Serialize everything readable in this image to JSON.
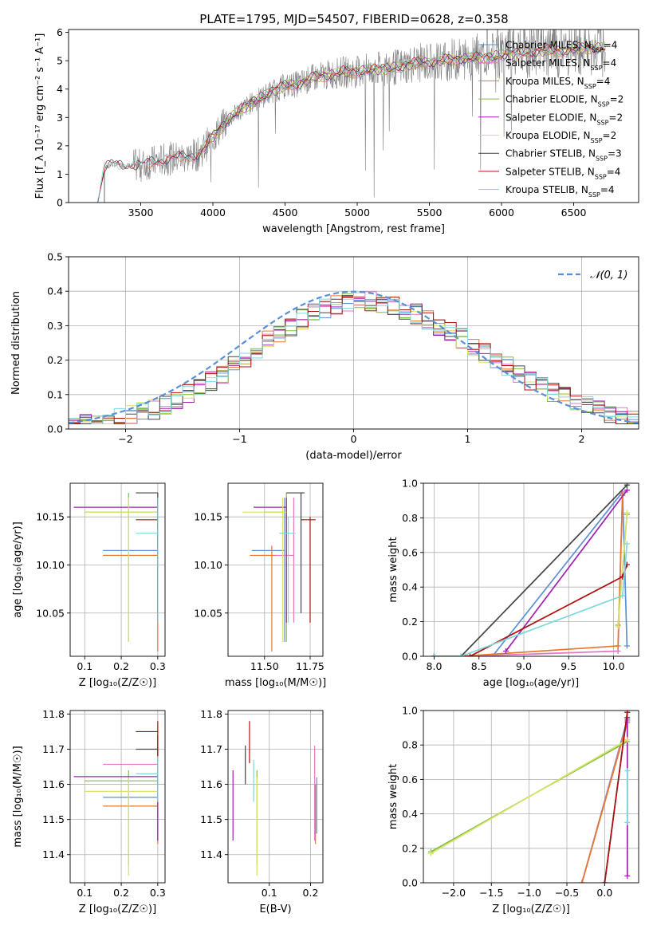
{
  "figure": {
    "title": "PLATE=1795, MJD=54507, FIBERID=0628, z=0.358"
  },
  "colors": {
    "chabrier_miles": "#5b8fd6",
    "salpeter_miles": "#e377c2",
    "kroupa_miles": "#e8772e",
    "chabrier_elodie": "#7fbf3f",
    "salpeter_elodie": "#a020b0",
    "kroupa_elodie": "#d9e36a",
    "chabrier_stelib": "#444444",
    "salpeter_stelib": "#b01010",
    "kroupa_stelib": "#7fd8dc",
    "observed": "#808080",
    "normal": "#5b8fd6"
  },
  "chart_data": [
    {
      "id": "spectrum",
      "type": "line",
      "xlabel": "wavelength [Angstrom, rest frame]",
      "ylabel": "Flux [f_λ 10⁻¹⁷ erg cm⁻² s⁻¹ A⁻¹]",
      "xlim": [
        3000,
        6950
      ],
      "ylim": [
        0,
        6.1
      ],
      "xticks": [
        3500,
        4000,
        4500,
        5000,
        5500,
        6000,
        6500
      ],
      "yticks": [
        0,
        1,
        2,
        3,
        4,
        5,
        6
      ],
      "grid": false,
      "legend_position": "top-right",
      "legend": [
        {
          "label": "Chabrier MILES, N",
          "sub": "SSP",
          "tail": "=4",
          "color_key": "chabrier_miles"
        },
        {
          "label": "Salpeter MILES, N",
          "sub": "SSP",
          "tail": "=4",
          "color_key": "salpeter_miles"
        },
        {
          "label": "Kroupa MILES, N",
          "sub": "SSP",
          "tail": "=4",
          "color_key": "kroupa_miles"
        },
        {
          "label": "Chabrier ELODIE, N",
          "sub": "SSP",
          "tail": "=2",
          "color_key": "chabrier_elodie"
        },
        {
          "label": "Salpeter ELODIE, N",
          "sub": "SSP",
          "tail": "=2",
          "color_key": "salpeter_elodie"
        },
        {
          "label": "Kroupa ELODIE, N",
          "sub": "SSP",
          "tail": "=2",
          "color_key": "kroupa_elodie"
        },
        {
          "label": "Chabrier STELIB, N",
          "sub": "SSP",
          "tail": "=3",
          "color_key": "chabrier_stelib"
        },
        {
          "label": "Salpeter STELIB, N",
          "sub": "SSP",
          "tail": "=4",
          "color_key": "salpeter_stelib"
        },
        {
          "label": "Kroupa STELIB, N",
          "sub": "SSP",
          "tail": "=4",
          "color_key": "kroupa_stelib"
        }
      ],
      "model_continuum": {
        "x": [
          3200,
          3250,
          3300,
          3400,
          3500,
          3600,
          3700,
          3800,
          3900,
          4000,
          4100,
          4200,
          4300,
          4400,
          4500,
          4600,
          4700,
          4800,
          4900,
          5000,
          5100,
          5200,
          5300,
          5400,
          5500,
          5600,
          5700,
          5800,
          5900,
          6000,
          6100,
          6200,
          6300,
          6400,
          6500,
          6600,
          6700
        ],
        "y": [
          0.0,
          1.2,
          1.35,
          1.3,
          1.3,
          1.45,
          1.55,
          1.6,
          1.7,
          2.3,
          2.9,
          3.3,
          3.6,
          3.9,
          4.1,
          4.2,
          4.4,
          4.5,
          4.6,
          4.6,
          4.7,
          4.7,
          4.8,
          4.9,
          4.95,
          5.0,
          5.05,
          5.1,
          5.1,
          5.2,
          5.25,
          5.3,
          5.35,
          5.35,
          5.4,
          5.45,
          5.45
        ]
      }
    },
    {
      "id": "residuals",
      "type": "line",
      "xlabel": "(data-model)/error",
      "ylabel": "Normed distribution",
      "xlim": [
        -2.5,
        2.5
      ],
      "ylim": [
        0,
        0.5
      ],
      "xticks": [
        -2,
        -1,
        0,
        1,
        2
      ],
      "yticks": [
        0.0,
        0.1,
        0.2,
        0.3,
        0.4,
        0.5
      ],
      "grid": true,
      "legend_position": "top-right",
      "legend": [
        {
          "label": "𝒩(0, 1)",
          "color_key": "normal",
          "style": "dashed"
        }
      ],
      "gaussian": {
        "mu": 0,
        "sigma": 1
      }
    },
    {
      "id": "age_vs_Z",
      "type": "scatter",
      "xlabel": "Z [log₁₀(Z/Z☉)]",
      "ylabel": "age  [log₁₀(age/yr)]",
      "xlim": [
        0.06,
        0.32
      ],
      "ylim": [
        10.005,
        10.185
      ],
      "xticks": [
        0.1,
        0.2,
        0.3
      ],
      "yticks": [
        10.05,
        10.1,
        10.15
      ],
      "grid": true,
      "points": [
        {
          "key": "chabrier_miles",
          "x": 0.3,
          "y": 10.115,
          "xlo": 0.15,
          "xhi": 0.3,
          "ylo": 10.06,
          "yhi": 10.17
        },
        {
          "key": "salpeter_miles",
          "x": 0.3,
          "y": 10.11,
          "xlo": 0.15,
          "xhi": 0.3,
          "ylo": 10.04,
          "yhi": 10.17
        },
        {
          "key": "kroupa_miles",
          "x": 0.3,
          "y": 10.11,
          "xlo": 0.15,
          "xhi": 0.3,
          "ylo": 10.01,
          "yhi": 10.12
        },
        {
          "key": "chabrier_elodie",
          "x": 0.22,
          "y": 10.155,
          "xlo": 0.1,
          "xhi": 0.3,
          "ylo": 10.02,
          "yhi": 10.175
        },
        {
          "key": "salpeter_elodie",
          "x": 0.3,
          "y": 10.16,
          "xlo": 0.07,
          "xhi": 0.3,
          "ylo": 10.04,
          "yhi": 10.17
        },
        {
          "key": "kroupa_elodie",
          "x": 0.22,
          "y": 10.155,
          "xlo": 0.1,
          "xhi": 0.3,
          "ylo": 10.02,
          "yhi": 10.17
        },
        {
          "key": "chabrier_stelib",
          "x": 0.3,
          "y": 10.175,
          "xlo": 0.24,
          "xhi": 0.3,
          "ylo": 10.04,
          "yhi": 10.175
        },
        {
          "key": "salpeter_stelib",
          "x": 0.3,
          "y": 10.147,
          "xlo": 0.24,
          "xhi": 0.3,
          "ylo": 10.04,
          "yhi": 10.17
        },
        {
          "key": "kroupa_stelib",
          "x": 0.3,
          "y": 10.133,
          "xlo": 0.24,
          "xhi": 0.3,
          "ylo": 10.04,
          "yhi": 10.17
        }
      ]
    },
    {
      "id": "age_vs_mass",
      "type": "scatter",
      "xlabel": "mass [log₁₀(M/M☉)]",
      "ylabel": "",
      "xlim": [
        11.3,
        11.82
      ],
      "ylim": [
        10.005,
        10.185
      ],
      "xticks": [
        11.5,
        11.75
      ],
      "xticklabels": [
        "11.50",
        "11.75"
      ],
      "yticks": [
        10.05,
        10.1,
        10.15
      ],
      "grid": true,
      "points": [
        {
          "key": "chabrier_miles",
          "x": 11.61,
          "y": 10.115,
          "xlo": 11.43,
          "xhi": 11.61,
          "ylo": 10.02,
          "yhi": 10.17
        },
        {
          "key": "salpeter_miles",
          "x": 11.66,
          "y": 10.11,
          "xlo": 11.48,
          "xhi": 11.66,
          "ylo": 10.04,
          "yhi": 10.17
        },
        {
          "key": "kroupa_miles",
          "x": 11.54,
          "y": 10.11,
          "xlo": 11.42,
          "xhi": 11.56,
          "ylo": 10.01,
          "yhi": 10.12
        },
        {
          "key": "chabrier_elodie",
          "x": 11.62,
          "y": 10.155,
          "xlo": 11.5,
          "xhi": 11.62,
          "ylo": 10.02,
          "yhi": 10.175
        },
        {
          "key": "salpeter_elodie",
          "x": 11.62,
          "y": 10.16,
          "xlo": 11.44,
          "xhi": 11.62,
          "ylo": 10.04,
          "yhi": 10.17
        },
        {
          "key": "kroupa_elodie",
          "x": 11.6,
          "y": 10.155,
          "xlo": 11.38,
          "xhi": 11.62,
          "ylo": 10.02,
          "yhi": 10.17
        },
        {
          "key": "chabrier_stelib",
          "x": 11.7,
          "y": 10.175,
          "xlo": 11.62,
          "xhi": 11.72,
          "ylo": 10.05,
          "yhi": 10.175
        },
        {
          "key": "salpeter_stelib",
          "x": 11.75,
          "y": 10.147,
          "xlo": 11.7,
          "xhi": 11.78,
          "ylo": 10.04,
          "yhi": 10.15
        },
        {
          "key": "kroupa_stelib",
          "x": 11.63,
          "y": 10.133,
          "xlo": 11.58,
          "xhi": 11.67,
          "ylo": 10.04,
          "yhi": 10.15
        }
      ]
    },
    {
      "id": "massweight_vs_age",
      "type": "line",
      "xlabel": "age  [log₁₀(age/yr)]",
      "ylabel": "mass weight",
      "xlim": [
        7.88,
        10.28
      ],
      "ylim": [
        0,
        1
      ],
      "xticks": [
        8.0,
        8.5,
        9.0,
        9.5,
        10.0
      ],
      "xticklabels": [
        "8.0",
        "8.5",
        "9.0",
        "9.5",
        "10.0"
      ],
      "yticks": [
        0.0,
        0.2,
        0.4,
        0.6,
        0.8,
        1.0
      ],
      "grid": true,
      "series": [
        {
          "key": "chabrier_miles",
          "x": [
            8.0,
            8.65,
            10.1,
            10.15
          ],
          "y": [
            0.0,
            0.0,
            0.95,
            0.06
          ]
        },
        {
          "key": "salpeter_miles",
          "x": [
            8.0,
            8.35,
            10.05,
            10.1
          ],
          "y": [
            0.0,
            0.0,
            0.03,
            0.94
          ]
        },
        {
          "key": "kroupa_miles",
          "x": [
            8.0,
            8.3,
            10.05,
            10.1
          ],
          "y": [
            0.0,
            0.0,
            0.06,
            0.93
          ]
        },
        {
          "key": "chabrier_elodie",
          "x": [
            10.05,
            10.15
          ],
          "y": [
            0.18,
            0.82
          ]
        },
        {
          "key": "salpeter_elodie",
          "x": [
            8.8,
            10.15
          ],
          "y": [
            0.03,
            0.96
          ]
        },
        {
          "key": "kroupa_elodie",
          "x": [
            10.05,
            10.15
          ],
          "y": [
            0.17,
            0.83
          ]
        },
        {
          "key": "chabrier_stelib",
          "x": [
            8.0,
            8.3,
            10.15
          ],
          "y": [
            0.0,
            0.0,
            0.99
          ]
        },
        {
          "key": "salpeter_stelib",
          "x": [
            8.0,
            8.4,
            10.1,
            10.15
          ],
          "y": [
            0.0,
            0.0,
            0.46,
            0.53
          ]
        },
        {
          "key": "kroupa_stelib",
          "x": [
            8.0,
            8.3,
            10.1,
            10.15
          ],
          "y": [
            0.0,
            0.0,
            0.35,
            0.65
          ]
        }
      ]
    },
    {
      "id": "mass_vs_Z",
      "type": "scatter",
      "xlabel": "Z [log₁₀(Z/Z☉)]",
      "ylabel": "mass [log₁₀(M/M☉)]",
      "xlim": [
        0.06,
        0.32
      ],
      "ylim": [
        11.32,
        11.81
      ],
      "xticks": [
        0.1,
        0.2,
        0.3
      ],
      "yticks": [
        11.4,
        11.5,
        11.6,
        11.7,
        11.8
      ],
      "grid": true,
      "points": [
        {
          "key": "chabrier_miles",
          "x": 0.3,
          "y": 11.563,
          "xlo": 0.15,
          "xhi": 0.3,
          "ylo": 11.46,
          "yhi": 11.63
        },
        {
          "key": "salpeter_miles",
          "x": 0.3,
          "y": 11.657,
          "xlo": 0.15,
          "xhi": 0.3,
          "ylo": 11.44,
          "yhi": 11.71
        },
        {
          "key": "kroupa_miles",
          "x": 0.3,
          "y": 11.538,
          "xlo": 0.15,
          "xhi": 0.3,
          "ylo": 11.43,
          "yhi": 11.6
        },
        {
          "key": "chabrier_elodie",
          "x": 0.22,
          "y": 11.61,
          "xlo": 0.1,
          "xhi": 0.3,
          "ylo": 11.37,
          "yhi": 11.64
        },
        {
          "key": "salpeter_elodie",
          "x": 0.3,
          "y": 11.622,
          "xlo": 0.07,
          "xhi": 0.3,
          "ylo": 11.44,
          "yhi": 11.64
        },
        {
          "key": "kroupa_elodie",
          "x": 0.22,
          "y": 11.58,
          "xlo": 0.1,
          "xhi": 0.3,
          "ylo": 11.34,
          "yhi": 11.62
        },
        {
          "key": "chabrier_stelib",
          "x": 0.3,
          "y": 11.7,
          "xlo": 0.24,
          "xhi": 0.3,
          "ylo": 11.6,
          "yhi": 11.74
        },
        {
          "key": "salpeter_stelib",
          "x": 0.3,
          "y": 11.75,
          "xlo": 0.24,
          "xhi": 0.3,
          "ylo": 11.68,
          "yhi": 11.78
        },
        {
          "key": "kroupa_stelib",
          "x": 0.3,
          "y": 11.63,
          "xlo": 0.24,
          "xhi": 0.3,
          "ylo": 11.55,
          "yhi": 11.68
        }
      ]
    },
    {
      "id": "mass_vs_ebv",
      "type": "scatter",
      "xlabel": "E(B-V)",
      "ylabel": "",
      "xlim": [
        0.0,
        0.23
      ],
      "ylim": [
        11.32,
        11.81
      ],
      "xticks": [
        0.1,
        0.2
      ],
      "yticks": [
        11.4,
        11.5,
        11.6,
        11.7,
        11.8
      ],
      "grid": true,
      "points": [
        {
          "key": "chabrier_miles",
          "x": 0.215,
          "y": 11.563,
          "ylo": 11.46,
          "yhi": 11.62
        },
        {
          "key": "salpeter_miles",
          "x": 0.21,
          "y": 11.657,
          "ylo": 11.44,
          "yhi": 11.71
        },
        {
          "key": "kroupa_miles",
          "x": 0.212,
          "y": 11.538,
          "ylo": 11.43,
          "yhi": 11.6
        },
        {
          "key": "chabrier_elodie",
          "x": 0.07,
          "y": 11.61,
          "ylo": 11.37,
          "yhi": 11.64
        },
        {
          "key": "salpeter_elodie",
          "x": 0.012,
          "y": 11.622,
          "ylo": 11.44,
          "yhi": 11.64
        },
        {
          "key": "kroupa_elodie",
          "x": 0.07,
          "y": 11.58,
          "ylo": 11.34,
          "yhi": 11.62
        },
        {
          "key": "chabrier_stelib",
          "x": 0.042,
          "y": 11.7,
          "ylo": 11.6,
          "yhi": 11.71
        },
        {
          "key": "salpeter_stelib",
          "x": 0.052,
          "y": 11.75,
          "ylo": 11.66,
          "yhi": 11.78
        },
        {
          "key": "kroupa_stelib",
          "x": 0.062,
          "y": 11.63,
          "ylo": 11.55,
          "yhi": 11.67
        }
      ]
    },
    {
      "id": "massweight_vs_Z",
      "type": "line",
      "xlabel": "Z [log₁₀(Z/Z☉)]",
      "ylabel": "mass weight",
      "xlim": [
        -2.4,
        0.45
      ],
      "ylim": [
        0,
        1
      ],
      "xticks": [
        -2.0,
        -1.5,
        -1.0,
        -0.5,
        0.0
      ],
      "xticklabels": [
        "−2.0",
        "−1.5",
        "−1.0",
        "−0.5",
        "0.0"
      ],
      "yticks": [
        0.0,
        0.2,
        0.4,
        0.6,
        0.8,
        1.0
      ],
      "grid": true,
      "series": [
        {
          "key": "chabrier_miles",
          "x": [
            -0.3,
            0.3
          ],
          "y": [
            0.0,
            0.95
          ]
        },
        {
          "key": "salpeter_miles",
          "x": [
            -0.3,
            0.3
          ],
          "y": [
            0.0,
            0.94
          ]
        },
        {
          "key": "kroupa_miles",
          "x": [
            -0.3,
            0.3
          ],
          "y": [
            0.0,
            0.93
          ]
        },
        {
          "key": "chabrier_elodie",
          "x": [
            -2.3,
            0.3
          ],
          "y": [
            0.18,
            0.82
          ]
        },
        {
          "key": "salpeter_elodie",
          "x": [
            0.3,
            0.3
          ],
          "y": [
            0.04,
            0.96
          ]
        },
        {
          "key": "kroupa_elodie",
          "x": [
            -2.3,
            0.3
          ],
          "y": [
            0.17,
            0.83
          ]
        },
        {
          "key": "chabrier_stelib",
          "x": [
            0.0,
            0.3
          ],
          "y": [
            0.0,
            0.99
          ]
        },
        {
          "key": "salpeter_stelib",
          "x": [
            0.0,
            0.3
          ],
          "y": [
            0.0,
            0.99
          ]
        },
        {
          "key": "kroupa_stelib",
          "x": [
            0.3,
            0.3
          ],
          "y": [
            0.35,
            0.65
          ]
        }
      ]
    }
  ]
}
